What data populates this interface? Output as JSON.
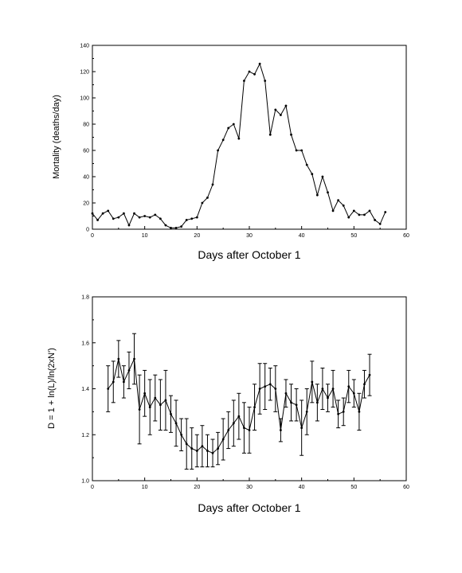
{
  "chart_data": [
    {
      "id": "mortality",
      "type": "line",
      "xlabel": "Days after October 1",
      "ylabel": "Mortality (deaths/day)",
      "xlim": [
        0,
        60
      ],
      "ylim": [
        0,
        140
      ],
      "x_ticks": [
        0,
        10,
        20,
        30,
        40,
        50,
        60
      ],
      "y_ticks": [
        0,
        20,
        40,
        60,
        80,
        100,
        120,
        140
      ],
      "grid": false,
      "series": [
        {
          "x": [
            0,
            1,
            2,
            3,
            4,
            5,
            6,
            7,
            8,
            9,
            10,
            11,
            12,
            13,
            14,
            15,
            16,
            17,
            18,
            19,
            20,
            21,
            22,
            23,
            24,
            25,
            26,
            27,
            28,
            29,
            30,
            31,
            32,
            33,
            34,
            35,
            36,
            37,
            38,
            39,
            40,
            41,
            42,
            43,
            44,
            45,
            46,
            47,
            48,
            49,
            50,
            51,
            52,
            53,
            54,
            55,
            56
          ],
          "y": [
            12,
            7,
            12,
            14,
            8,
            9,
            12,
            3,
            12,
            9,
            10,
            9,
            11,
            8,
            3,
            1,
            1,
            2,
            7,
            8,
            9,
            20,
            24,
            34,
            60,
            68,
            77,
            80,
            69,
            113,
            120,
            118,
            126,
            113,
            72,
            91,
            87,
            94,
            72,
            60,
            60,
            49,
            42,
            26,
            40,
            28,
            14,
            22,
            18,
            9,
            14,
            11,
            11,
            14,
            7,
            4,
            13
          ]
        }
      ]
    },
    {
      "id": "fractal-dimension",
      "type": "line",
      "xlabel": "Days after October 1",
      "ylabel": "D = 1 + ln(L)/ln(2xN')",
      "xlim": [
        0,
        60
      ],
      "ylim": [
        1.0,
        1.8
      ],
      "x_ticks": [
        0,
        10,
        20,
        30,
        40,
        50,
        60
      ],
      "y_ticks": [
        1.0,
        1.2,
        1.4,
        1.6,
        1.8
      ],
      "grid": false,
      "error_bars": true,
      "series": [
        {
          "x": [
            3,
            4,
            5,
            6,
            7,
            8,
            9,
            10,
            11,
            12,
            13,
            14,
            15,
            16,
            17,
            18,
            19,
            20,
            21,
            22,
            23,
            24,
            25,
            26,
            27,
            28,
            29,
            30,
            31,
            32,
            33,
            34,
            35,
            36,
            37,
            38,
            39,
            40,
            41,
            42,
            43,
            44,
            45,
            46,
            47,
            48,
            49,
            50,
            51,
            52,
            53
          ],
          "y": [
            1.4,
            1.43,
            1.53,
            1.43,
            1.48,
            1.53,
            1.31,
            1.38,
            1.32,
            1.36,
            1.33,
            1.35,
            1.29,
            1.25,
            1.2,
            1.16,
            1.14,
            1.13,
            1.15,
            1.13,
            1.12,
            1.14,
            1.18,
            1.22,
            1.25,
            1.28,
            1.23,
            1.22,
            1.32,
            1.4,
            1.41,
            1.42,
            1.4,
            1.22,
            1.38,
            1.34,
            1.33,
            1.23,
            1.3,
            1.43,
            1.34,
            1.4,
            1.36,
            1.4,
            1.29,
            1.3,
            1.41,
            1.38,
            1.3,
            1.42,
            1.46
          ],
          "err": [
            0.1,
            0.09,
            0.08,
            0.07,
            0.08,
            0.11,
            0.15,
            0.1,
            0.12,
            0.1,
            0.11,
            0.13,
            0.08,
            0.1,
            0.07,
            0.11,
            0.09,
            0.07,
            0.09,
            0.07,
            0.06,
            0.07,
            0.09,
            0.08,
            0.1,
            0.1,
            0.11,
            0.1,
            0.1,
            0.11,
            0.1,
            0.07,
            0.1,
            0.05,
            0.06,
            0.08,
            0.07,
            0.12,
            0.1,
            0.09,
            0.08,
            0.09,
            0.06,
            0.08,
            0.06,
            0.06,
            0.07,
            0.06,
            0.08,
            0.06,
            0.09
          ]
        }
      ]
    }
  ]
}
